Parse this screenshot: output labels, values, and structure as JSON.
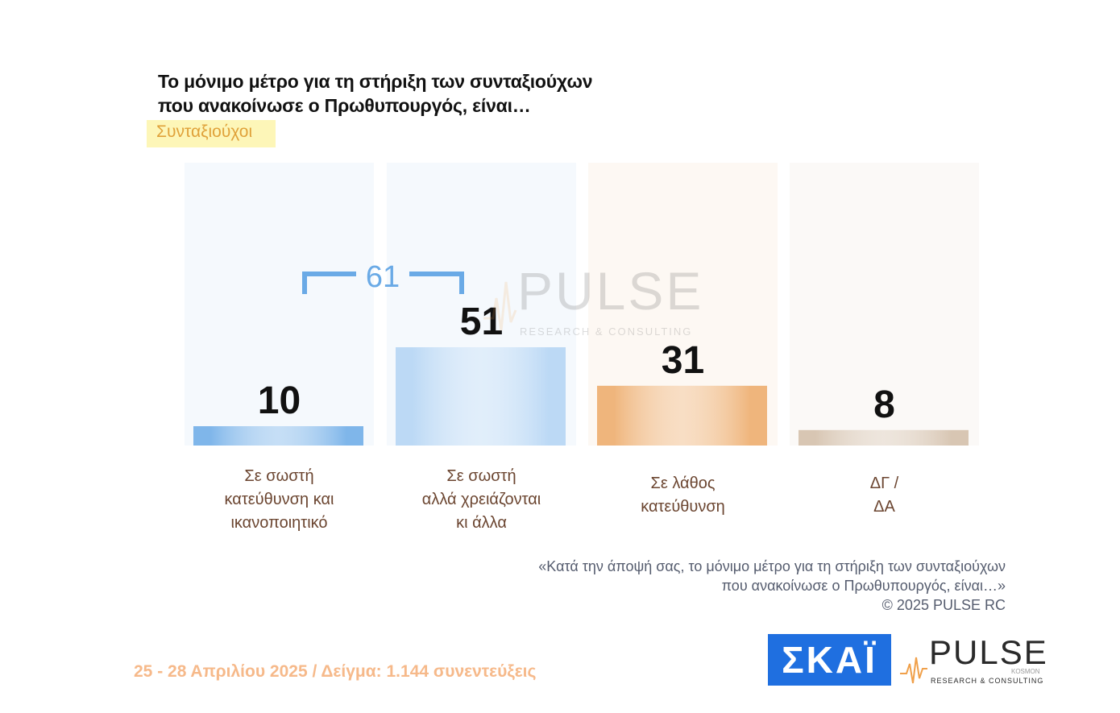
{
  "title": "Το μόνιμο μέτρο  για τη στήριξη των συνταξιούχων\nπου ανακοίνωσε ο Πρωθυπουργός, είναι…",
  "subtitle": "Συνταξιούχοι",
  "chart_data": {
    "type": "bar",
    "categories": [
      [
        "Σε σωστή",
        "κατεύθυνση και",
        "ικανοποιητικό"
      ],
      [
        "Σε σωστή",
        "αλλά χρειάζονται",
        "κι άλλα"
      ],
      [
        "Σε λάθος",
        "κατεύθυνση"
      ],
      [
        "ΔΓ /",
        "ΔΑ"
      ]
    ],
    "values": [
      10,
      51,
      31,
      8
    ],
    "data_labels": [
      "10",
      "51",
      "31",
      "8"
    ],
    "ylim": [
      0,
      100
    ],
    "bar_colors": [
      "#7fb6ea",
      "#bcd9f5",
      "#efb57c",
      "#d8c6b3"
    ],
    "background_colors": [
      "#f5f9fd",
      "#f5f9fd",
      "#fdf8f3",
      "#fbf9f7"
    ],
    "bracket": {
      "label": "61",
      "spans": [
        0,
        1
      ],
      "color": "#6aaae6"
    }
  },
  "question": [
    "«Κατά την άποψή σας, το μόνιμο μέτρο  για τη στήριξη των συνταξιούχων",
    "που ανακοίνωσε ο Πρωθυπουργός, είναι…»",
    "©  2025  PULSE RC"
  ],
  "footer": "25 - 28 Απριλίου 2025  /  Δείγμα:  1.144 συνεντεύξεις",
  "logos": {
    "skai": "ΣΚΑΪ",
    "pulse": "PULSE",
    "pulse_sub": "RESEARCH & CONSULTING",
    "pulse_tag": "KOSMON"
  },
  "colors": {
    "title": "#111111",
    "category_text": "#6b4530",
    "footer": "#f6b98a",
    "skai_bg": "#1f6fe0"
  }
}
